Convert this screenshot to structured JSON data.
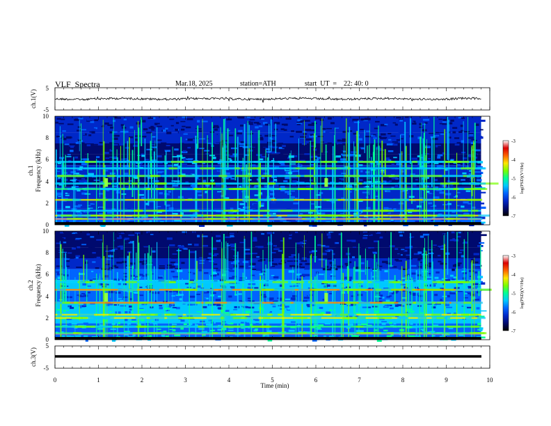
{
  "header": {
    "title": "VLF  Spectra",
    "date": "Mar.18, 2025",
    "station": "station=ATH",
    "start": "start  UT  =    22: 40: 0"
  },
  "chart_data": [
    {
      "id": "ch1-waveform",
      "type": "line",
      "ylabel": "ch.1(V)",
      "ylim": [
        -5,
        5
      ],
      "yticks": [
        "5",
        "-5"
      ],
      "xlim": [
        0,
        10
      ],
      "line_color": "#000000"
    },
    {
      "id": "ch1-spectrogram",
      "type": "heatmap",
      "ylabel": "ch.1",
      "ylabel2": "Frequency (kHz)",
      "ylim": [
        0,
        10
      ],
      "yticks": [
        "0",
        "2",
        "4",
        "6",
        "8",
        "10"
      ],
      "xlim": [
        0,
        10
      ],
      "data_end_min": 9.8,
      "colorbar": {
        "label": "log(PSD)(V²/Hz)",
        "ticks": [
          "-3",
          "-4",
          "-5",
          "-6",
          "-7"
        ],
        "range": [
          -7,
          -3
        ]
      },
      "bands_khz": [
        {
          "f": 0.55,
          "level": "mixed"
        },
        {
          "f": 0.85,
          "level": "yellow"
        },
        {
          "f": 1.3,
          "level": "cyan"
        },
        {
          "f": 2.3,
          "level": "yellow"
        },
        {
          "f": 3.3,
          "level": "green"
        },
        {
          "f": 3.8,
          "level": "cyan"
        },
        {
          "f": 4.5,
          "level": "cyan"
        },
        {
          "f": 5.2,
          "level": "cyan"
        },
        {
          "f": 5.8,
          "level": "cyan"
        }
      ],
      "bursts_min": [
        1.17,
        6.23
      ]
    },
    {
      "id": "ch2-spectrogram",
      "type": "heatmap",
      "ylabel": "ch.2",
      "ylabel2": "Frequency (kHz)",
      "ylim": [
        0,
        10
      ],
      "yticks": [
        "0",
        "2",
        "4",
        "6",
        "8",
        "10"
      ],
      "xlim": [
        0,
        10
      ],
      "data_end_min": 9.8,
      "colorbar": {
        "label": "log(PSD)(V²/Hz)",
        "ticks": [
          "-3",
          "-4",
          "-5",
          "-6",
          "-7"
        ],
        "range": [
          -7,
          -3
        ]
      },
      "bands_khz": [
        {
          "f": 0.6,
          "level": "green"
        },
        {
          "f": 1.2,
          "level": "green"
        },
        {
          "f": 2.0,
          "level": "yellow"
        },
        {
          "f": 2.3,
          "level": "yellow"
        },
        {
          "f": 3.4,
          "level": "orange"
        },
        {
          "f": 4.6,
          "level": "orange"
        },
        {
          "f": 5.3,
          "level": "cyan"
        }
      ],
      "bursts_min": [
        1.17,
        6.23
      ]
    },
    {
      "id": "ch3-waveform",
      "type": "line",
      "ylabel": "ch.3(V)",
      "ylim": [
        -5,
        5
      ],
      "yticks": [
        "5",
        "-5"
      ],
      "xlim": [
        0,
        10
      ],
      "line_color": "#000000"
    }
  ],
  "xaxis": {
    "label": "Time  (min)",
    "ticks": [
      "0",
      "1",
      "2",
      "3",
      "4",
      "5",
      "6",
      "7",
      "8",
      "9",
      "10"
    ],
    "range": [
      0,
      10
    ]
  },
  "colormap": [
    "#000000",
    "#000a6e",
    "#0028c8",
    "#0064ff",
    "#00c8ff",
    "#00ff96",
    "#78ff00",
    "#ffe600",
    "#ff6400",
    "#dc0000",
    "#ffffff"
  ]
}
